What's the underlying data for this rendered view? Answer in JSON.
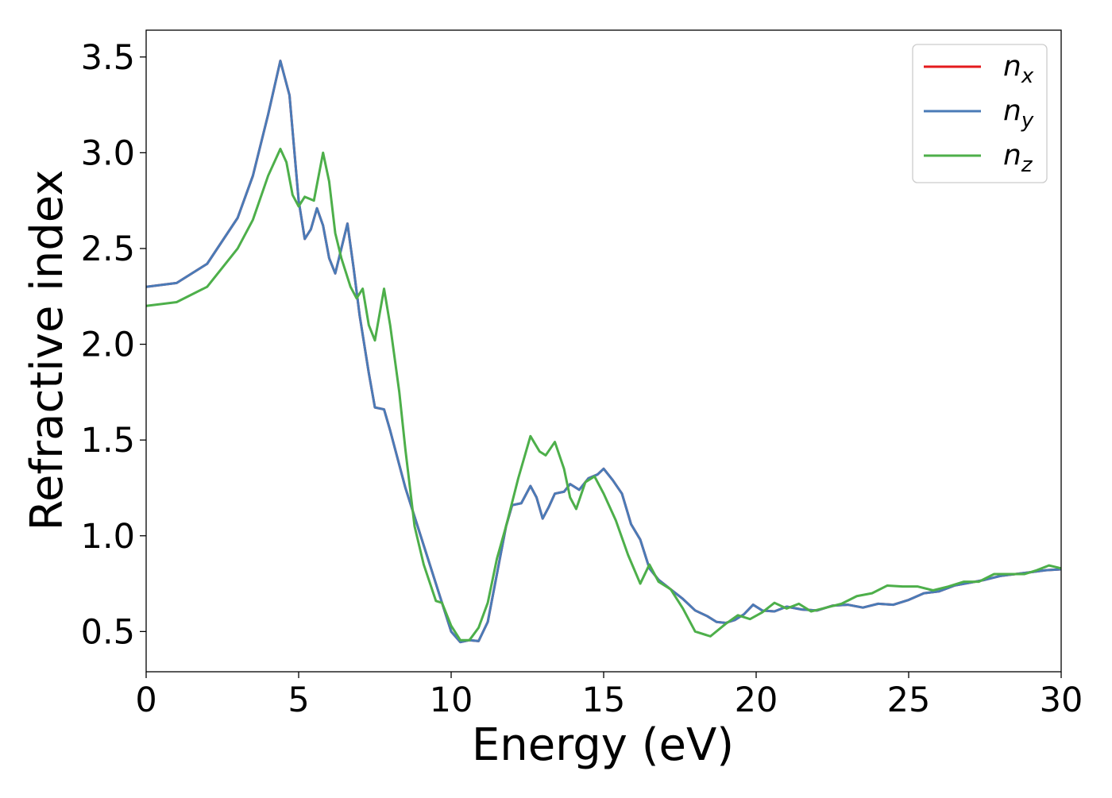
{
  "chart_data": {
    "type": "line",
    "xlabel": "Energy (eV)",
    "ylabel": "Refractive index",
    "xlim": [
      0,
      30
    ],
    "ylim": [
      0.29,
      3.64
    ],
    "x_ticks": [
      0,
      5,
      10,
      15,
      20,
      25,
      30
    ],
    "x_tick_labels": [
      "0",
      "5",
      "10",
      "15",
      "20",
      "25",
      "30"
    ],
    "y_ticks": [
      0.5,
      1.0,
      1.5,
      2.0,
      2.5,
      3.0,
      3.5
    ],
    "y_tick_labels": [
      "0.5",
      "1.0",
      "1.5",
      "2.0",
      "2.5",
      "3.0",
      "3.5"
    ],
    "grid": false,
    "legend_position": "top-right",
    "series": [
      {
        "name": "n",
        "subscript": "x",
        "color": "#e41a1c",
        "points": [
          [
            0,
            2.3
          ],
          [
            1,
            2.32
          ],
          [
            2,
            2.42
          ],
          [
            3,
            2.66
          ],
          [
            3.5,
            2.88
          ],
          [
            4,
            3.2
          ],
          [
            4.4,
            3.48
          ],
          [
            4.7,
            3.3
          ],
          [
            5.0,
            2.75
          ],
          [
            5.2,
            2.55
          ],
          [
            5.4,
            2.6
          ],
          [
            5.6,
            2.71
          ],
          [
            5.8,
            2.62
          ],
          [
            6.0,
            2.45
          ],
          [
            6.2,
            2.37
          ],
          [
            6.4,
            2.5
          ],
          [
            6.6,
            2.63
          ],
          [
            6.8,
            2.4
          ],
          [
            7.0,
            2.15
          ],
          [
            7.3,
            1.85
          ],
          [
            7.5,
            1.67
          ],
          [
            7.8,
            1.66
          ],
          [
            8.0,
            1.55
          ],
          [
            8.5,
            1.25
          ],
          [
            9.0,
            1.0
          ],
          [
            9.5,
            0.75
          ],
          [
            10.0,
            0.5
          ],
          [
            10.3,
            0.445
          ],
          [
            10.6,
            0.455
          ],
          [
            10.9,
            0.45
          ],
          [
            11.2,
            0.55
          ],
          [
            11.5,
            0.8
          ],
          [
            11.8,
            1.05
          ],
          [
            12.0,
            1.16
          ],
          [
            12.3,
            1.17
          ],
          [
            12.6,
            1.26
          ],
          [
            12.8,
            1.2
          ],
          [
            13.0,
            1.09
          ],
          [
            13.2,
            1.15
          ],
          [
            13.4,
            1.22
          ],
          [
            13.7,
            1.23
          ],
          [
            13.9,
            1.27
          ],
          [
            14.2,
            1.24
          ],
          [
            14.5,
            1.3
          ],
          [
            14.8,
            1.32
          ],
          [
            15.0,
            1.35
          ],
          [
            15.3,
            1.29
          ],
          [
            15.6,
            1.22
          ],
          [
            15.9,
            1.06
          ],
          [
            16.2,
            0.98
          ],
          [
            16.5,
            0.83
          ],
          [
            16.8,
            0.77
          ],
          [
            17.2,
            0.72
          ],
          [
            17.6,
            0.67
          ],
          [
            18.0,
            0.61
          ],
          [
            18.4,
            0.58
          ],
          [
            18.7,
            0.55
          ],
          [
            19.0,
            0.545
          ],
          [
            19.3,
            0.56
          ],
          [
            19.6,
            0.59
          ],
          [
            19.9,
            0.64
          ],
          [
            20.2,
            0.61
          ],
          [
            20.6,
            0.605
          ],
          [
            21.0,
            0.63
          ],
          [
            21.5,
            0.615
          ],
          [
            22.0,
            0.61
          ],
          [
            22.5,
            0.635
          ],
          [
            23.0,
            0.64
          ],
          [
            23.5,
            0.625
          ],
          [
            24.0,
            0.645
          ],
          [
            24.5,
            0.64
          ],
          [
            25.0,
            0.665
          ],
          [
            25.5,
            0.7
          ],
          [
            26.0,
            0.71
          ],
          [
            26.5,
            0.74
          ],
          [
            27.0,
            0.755
          ],
          [
            27.5,
            0.77
          ],
          [
            28.0,
            0.79
          ],
          [
            28.5,
            0.8
          ],
          [
            29.0,
            0.81
          ],
          [
            29.5,
            0.82
          ],
          [
            30.0,
            0.825
          ]
        ]
      },
      {
        "name": "n",
        "subscript": "y",
        "color": "#4a7bb7",
        "points": [
          [
            0,
            2.3
          ],
          [
            1,
            2.32
          ],
          [
            2,
            2.42
          ],
          [
            3,
            2.66
          ],
          [
            3.5,
            2.88
          ],
          [
            4,
            3.2
          ],
          [
            4.4,
            3.48
          ],
          [
            4.7,
            3.3
          ],
          [
            5.0,
            2.75
          ],
          [
            5.2,
            2.55
          ],
          [
            5.4,
            2.6
          ],
          [
            5.6,
            2.71
          ],
          [
            5.8,
            2.62
          ],
          [
            6.0,
            2.45
          ],
          [
            6.2,
            2.37
          ],
          [
            6.4,
            2.5
          ],
          [
            6.6,
            2.63
          ],
          [
            6.8,
            2.4
          ],
          [
            7.0,
            2.15
          ],
          [
            7.3,
            1.85
          ],
          [
            7.5,
            1.67
          ],
          [
            7.8,
            1.66
          ],
          [
            8.0,
            1.55
          ],
          [
            8.5,
            1.25
          ],
          [
            9.0,
            1.0
          ],
          [
            9.5,
            0.75
          ],
          [
            10.0,
            0.5
          ],
          [
            10.3,
            0.445
          ],
          [
            10.6,
            0.455
          ],
          [
            10.9,
            0.45
          ],
          [
            11.2,
            0.55
          ],
          [
            11.5,
            0.8
          ],
          [
            11.8,
            1.05
          ],
          [
            12.0,
            1.16
          ],
          [
            12.3,
            1.17
          ],
          [
            12.6,
            1.26
          ],
          [
            12.8,
            1.2
          ],
          [
            13.0,
            1.09
          ],
          [
            13.2,
            1.15
          ],
          [
            13.4,
            1.22
          ],
          [
            13.7,
            1.23
          ],
          [
            13.9,
            1.27
          ],
          [
            14.2,
            1.24
          ],
          [
            14.5,
            1.3
          ],
          [
            14.8,
            1.32
          ],
          [
            15.0,
            1.35
          ],
          [
            15.3,
            1.29
          ],
          [
            15.6,
            1.22
          ],
          [
            15.9,
            1.06
          ],
          [
            16.2,
            0.98
          ],
          [
            16.5,
            0.83
          ],
          [
            16.8,
            0.77
          ],
          [
            17.2,
            0.72
          ],
          [
            17.6,
            0.67
          ],
          [
            18.0,
            0.61
          ],
          [
            18.4,
            0.58
          ],
          [
            18.7,
            0.55
          ],
          [
            19.0,
            0.545
          ],
          [
            19.3,
            0.56
          ],
          [
            19.6,
            0.59
          ],
          [
            19.9,
            0.64
          ],
          [
            20.2,
            0.61
          ],
          [
            20.6,
            0.605
          ],
          [
            21.0,
            0.63
          ],
          [
            21.5,
            0.615
          ],
          [
            22.0,
            0.61
          ],
          [
            22.5,
            0.635
          ],
          [
            23.0,
            0.64
          ],
          [
            23.5,
            0.625
          ],
          [
            24.0,
            0.645
          ],
          [
            24.5,
            0.64
          ],
          [
            25.0,
            0.665
          ],
          [
            25.5,
            0.7
          ],
          [
            26.0,
            0.71
          ],
          [
            26.5,
            0.74
          ],
          [
            27.0,
            0.755
          ],
          [
            27.5,
            0.77
          ],
          [
            28.0,
            0.79
          ],
          [
            28.5,
            0.8
          ],
          [
            29.0,
            0.81
          ],
          [
            29.5,
            0.82
          ],
          [
            30.0,
            0.825
          ]
        ]
      },
      {
        "name": "n",
        "subscript": "z",
        "color": "#4daf4a",
        "points": [
          [
            0,
            2.2
          ],
          [
            1,
            2.22
          ],
          [
            2,
            2.3
          ],
          [
            3,
            2.5
          ],
          [
            3.5,
            2.65
          ],
          [
            4,
            2.88
          ],
          [
            4.4,
            3.02
          ],
          [
            4.6,
            2.95
          ],
          [
            4.8,
            2.78
          ],
          [
            5.0,
            2.72
          ],
          [
            5.2,
            2.77
          ],
          [
            5.5,
            2.75
          ],
          [
            5.8,
            3.0
          ],
          [
            6.0,
            2.85
          ],
          [
            6.2,
            2.58
          ],
          [
            6.4,
            2.45
          ],
          [
            6.7,
            2.3
          ],
          [
            6.9,
            2.24
          ],
          [
            7.1,
            2.29
          ],
          [
            7.3,
            2.1
          ],
          [
            7.5,
            2.02
          ],
          [
            7.8,
            2.29
          ],
          [
            8.0,
            2.1
          ],
          [
            8.3,
            1.75
          ],
          [
            8.5,
            1.45
          ],
          [
            8.8,
            1.05
          ],
          [
            9.1,
            0.85
          ],
          [
            9.5,
            0.66
          ],
          [
            9.7,
            0.65
          ],
          [
            10.0,
            0.53
          ],
          [
            10.3,
            0.455
          ],
          [
            10.6,
            0.455
          ],
          [
            10.9,
            0.52
          ],
          [
            11.2,
            0.65
          ],
          [
            11.5,
            0.88
          ],
          [
            11.8,
            1.05
          ],
          [
            12.2,
            1.3
          ],
          [
            12.6,
            1.52
          ],
          [
            12.9,
            1.44
          ],
          [
            13.1,
            1.42
          ],
          [
            13.4,
            1.49
          ],
          [
            13.7,
            1.35
          ],
          [
            13.9,
            1.2
          ],
          [
            14.1,
            1.14
          ],
          [
            14.4,
            1.28
          ],
          [
            14.7,
            1.31
          ],
          [
            15.0,
            1.22
          ],
          [
            15.4,
            1.08
          ],
          [
            15.8,
            0.9
          ],
          [
            16.2,
            0.75
          ],
          [
            16.5,
            0.85
          ],
          [
            16.8,
            0.76
          ],
          [
            17.2,
            0.72
          ],
          [
            17.6,
            0.62
          ],
          [
            18.0,
            0.5
          ],
          [
            18.5,
            0.475
          ],
          [
            19.0,
            0.54
          ],
          [
            19.4,
            0.585
          ],
          [
            19.8,
            0.565
          ],
          [
            20.2,
            0.6
          ],
          [
            20.6,
            0.65
          ],
          [
            21.0,
            0.62
          ],
          [
            21.4,
            0.645
          ],
          [
            21.8,
            0.605
          ],
          [
            22.3,
            0.625
          ],
          [
            22.8,
            0.645
          ],
          [
            23.3,
            0.685
          ],
          [
            23.8,
            0.7
          ],
          [
            24.3,
            0.74
          ],
          [
            24.8,
            0.735
          ],
          [
            25.3,
            0.735
          ],
          [
            25.8,
            0.715
          ],
          [
            26.3,
            0.735
          ],
          [
            26.8,
            0.76
          ],
          [
            27.3,
            0.76
          ],
          [
            27.8,
            0.8
          ],
          [
            28.3,
            0.8
          ],
          [
            28.8,
            0.8
          ],
          [
            29.2,
            0.82
          ],
          [
            29.6,
            0.845
          ],
          [
            30.0,
            0.83
          ]
        ]
      }
    ]
  }
}
